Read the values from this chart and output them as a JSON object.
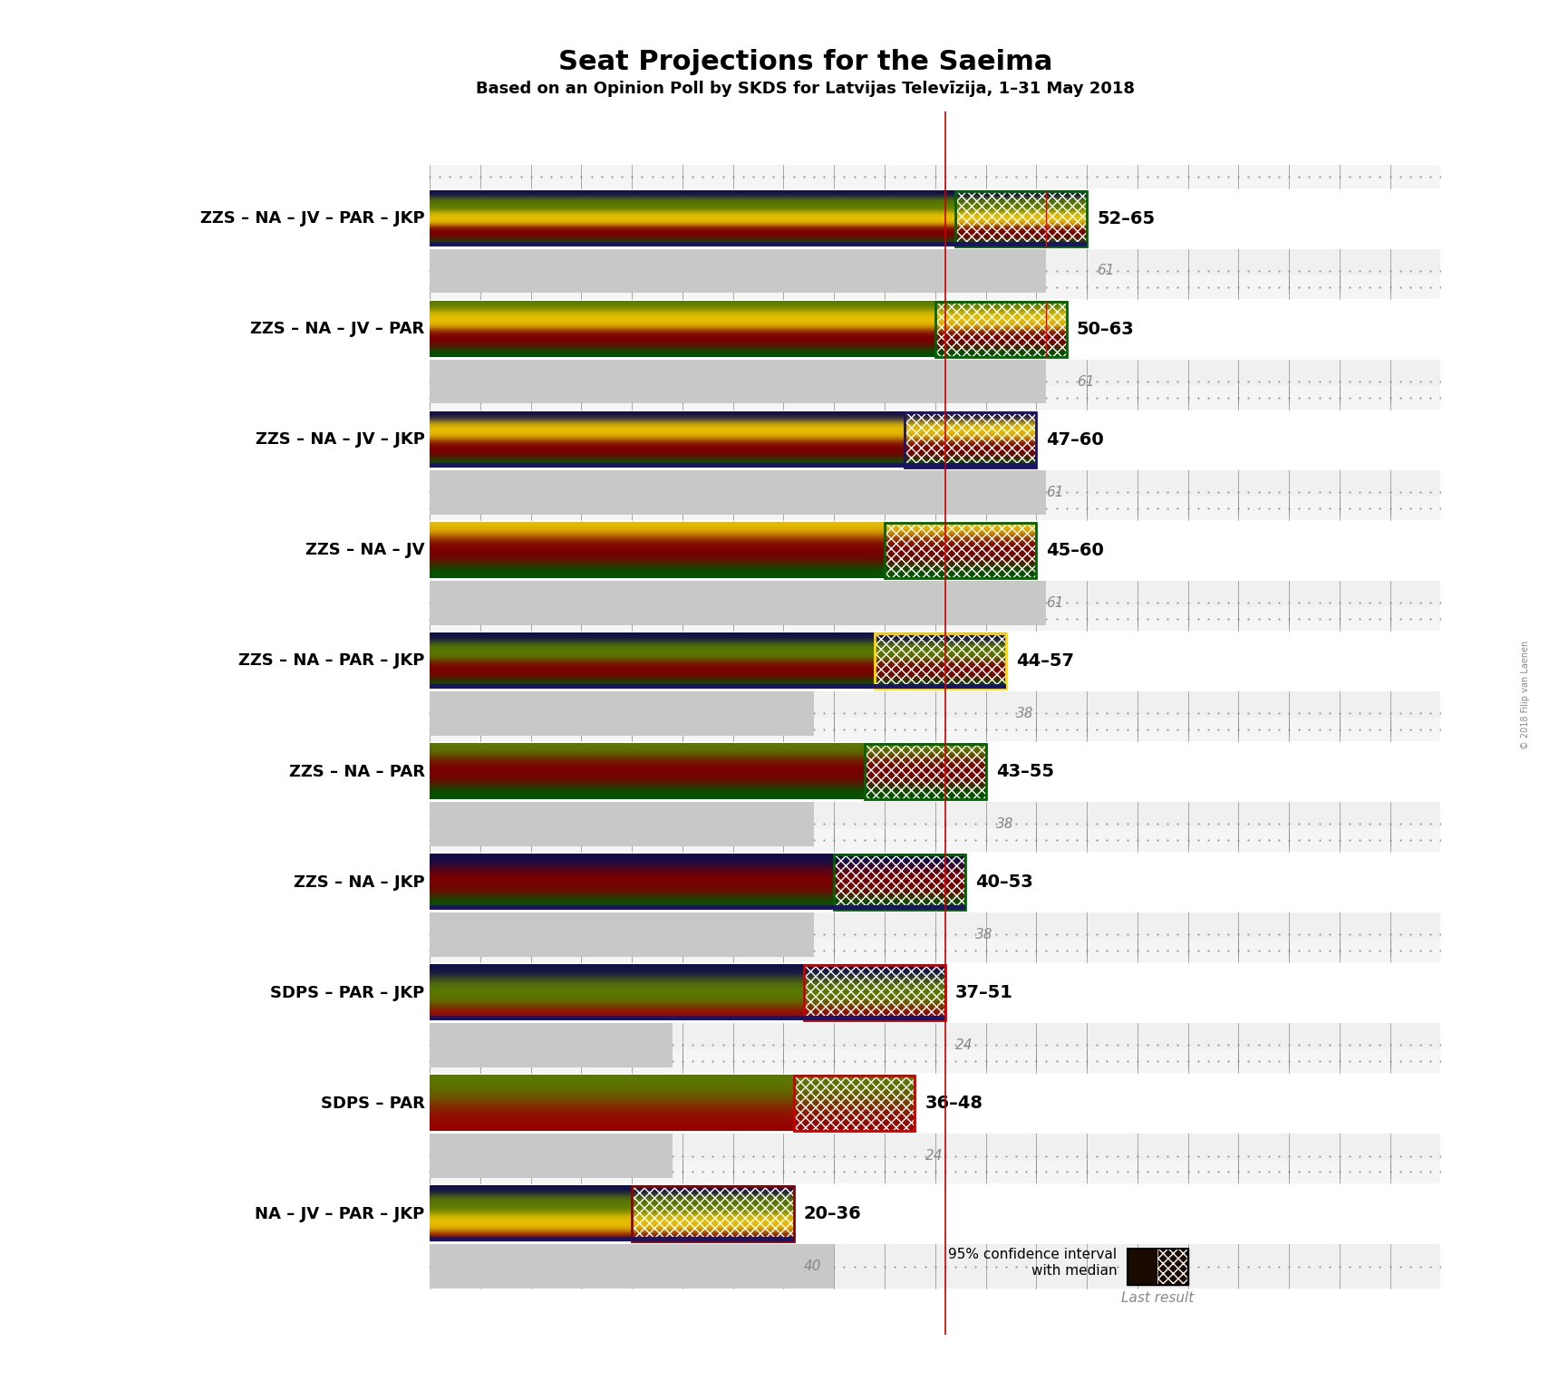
{
  "title": "Seat Projections for the Saeima",
  "subtitle": "Based on an Opinion Poll by SKDS for Latvijas Televīzija, 1–31 May 2018",
  "copyright": "© 2018 Filip van Laenen",
  "coalitions": [
    {
      "name": "ZZS – NA – JV – PAR – JKP",
      "low": 52,
      "high": 65,
      "median": 61,
      "last_result": 61,
      "parties": [
        "ZZS",
        "NA",
        "JV",
        "PAR",
        "JKP"
      ],
      "ci_outline": "#006400",
      "has_navy": true
    },
    {
      "name": "ZZS – NA – JV – PAR",
      "low": 50,
      "high": 63,
      "median": 61,
      "last_result": 61,
      "parties": [
        "ZZS",
        "NA",
        "JV",
        "PAR"
      ],
      "ci_outline": "#006400",
      "has_navy": false
    },
    {
      "name": "ZZS – NA – JV – JKP",
      "low": 47,
      "high": 60,
      "median": 61,
      "last_result": 61,
      "parties": [
        "ZZS",
        "NA",
        "JV",
        "JKP"
      ],
      "ci_outline": "#1B1464",
      "has_navy": true
    },
    {
      "name": "ZZS – NA – JV",
      "low": 45,
      "high": 60,
      "median": 61,
      "last_result": 61,
      "parties": [
        "ZZS",
        "NA",
        "JV"
      ],
      "ci_outline": "#006400",
      "has_navy": false
    },
    {
      "name": "ZZS – NA – PAR – JKP",
      "low": 44,
      "high": 57,
      "median": 38,
      "last_result": 38,
      "parties": [
        "ZZS",
        "NA",
        "PAR",
        "JKP"
      ],
      "ci_outline": "#FFD700",
      "has_navy": true
    },
    {
      "name": "ZZS – NA – PAR",
      "low": 43,
      "high": 55,
      "median": 38,
      "last_result": 38,
      "parties": [
        "ZZS",
        "NA",
        "PAR"
      ],
      "ci_outline": "#006400",
      "has_navy": false
    },
    {
      "name": "ZZS – NA – JKP",
      "low": 40,
      "high": 53,
      "median": 38,
      "last_result": 38,
      "parties": [
        "ZZS",
        "NA",
        "JKP"
      ],
      "ci_outline": "#006400",
      "has_navy": true
    },
    {
      "name": "SDPS – PAR – JKP",
      "low": 37,
      "high": 51,
      "median": 24,
      "last_result": 24,
      "parties": [
        "SDPS",
        "PAR",
        "JKP"
      ],
      "ci_outline": "#CC0000",
      "has_navy": true
    },
    {
      "name": "SDPS – PAR",
      "low": 36,
      "high": 48,
      "median": 24,
      "last_result": 24,
      "parties": [
        "SDPS",
        "PAR"
      ],
      "ci_outline": "#CC0000",
      "has_navy": false
    },
    {
      "name": "NA – JV – PAR – JKP",
      "low": 20,
      "high": 36,
      "median": 40,
      "last_result": 40,
      "parties": [
        "NA",
        "JV",
        "PAR",
        "JKP"
      ],
      "ci_outline": "#8B0000",
      "has_navy": true
    }
  ],
  "party_colors": {
    "ZZS": [
      "#006400",
      "#228B22",
      "#98CB98"
    ],
    "NA": [
      "#8B0000",
      "#CC2222",
      "#FF8888"
    ],
    "JV": [
      "#FFD700",
      "#FFD700",
      "#FFFF88"
    ],
    "PAR": [
      "#6B8E00",
      "#99CC00",
      "#CCEE66"
    ],
    "JKP": [
      "#1B1464",
      "#2B2494",
      "#6666CC"
    ],
    "SDPS": [
      "#880000",
      "#CC0000",
      "#FF6666"
    ]
  },
  "majority_line": 51,
  "x_max": 100,
  "background_color": "#FFFFFF",
  "dotted_bg_color": "#E8E8E8",
  "gray_bar_color": "#C0C0C0",
  "navy_stripe_color": "#1B1464",
  "range_label_color": "#000000",
  "last_result_color": "#888888",
  "label_color": "#000000",
  "legend_text": "95% confidence interval\nwith median",
  "legend_last": "Last result"
}
